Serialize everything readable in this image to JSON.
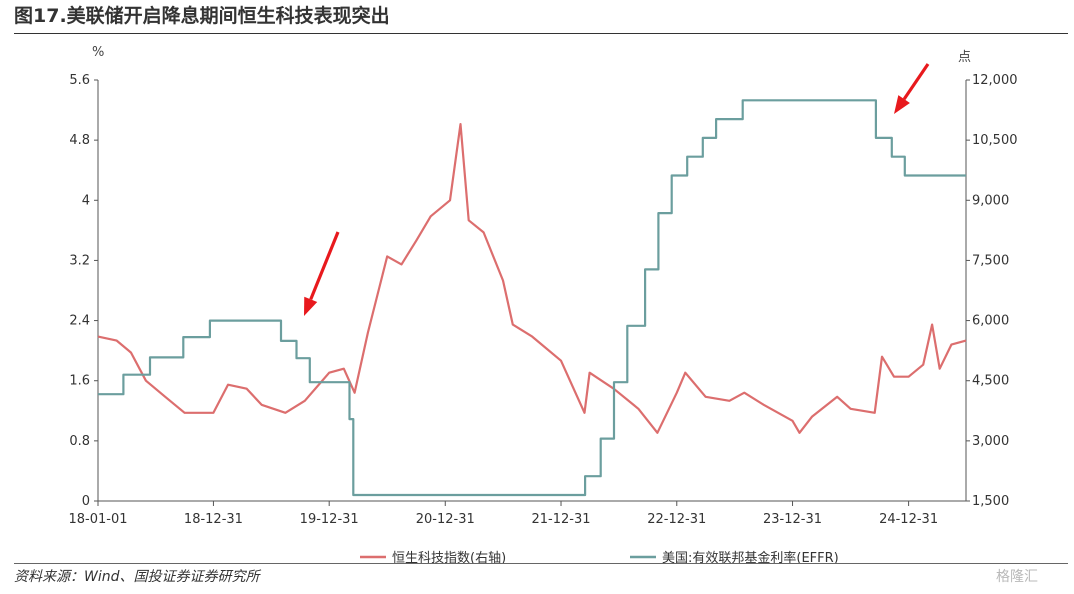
{
  "header": {
    "title": "图17.美联储开启降息期间恒生科技表现突出"
  },
  "footer": {
    "source": "资料来源：Wind、国投证券证券研究所",
    "watermark": "格隆汇"
  },
  "chart_data": {
    "type": "line",
    "left_unit": "%",
    "right_unit": "点",
    "x_ticks": [
      "18-01-01",
      "18-12-31",
      "19-12-31",
      "20-12-31",
      "21-12-31",
      "22-12-31",
      "23-12-31",
      "24-12-31"
    ],
    "left_axis": {
      "ylim": [
        0,
        5.6
      ],
      "ticks": [
        "0",
        "0.8",
        "1.6",
        "2.4",
        "3.2",
        "4",
        "4.8",
        "5.6"
      ]
    },
    "right_axis": {
      "ylim": [
        1500,
        12000
      ],
      "ticks": [
        "1,500",
        "3,000",
        "4,500",
        "6,000",
        "7,500",
        "9,000",
        "10,500",
        "12,000"
      ]
    },
    "grid": false,
    "legend_position": "bottom",
    "series": [
      {
        "name": "恒生科技指数(右轴)",
        "axis": "right",
        "color": "#dc6e6e",
        "x": [
          "2018-01-01",
          "2018-03-01",
          "2018-04-15",
          "2018-06-01",
          "2018-08-01",
          "2018-10-01",
          "2018-12-31",
          "2019-02-15",
          "2019-04-15",
          "2019-06-01",
          "2019-08-15",
          "2019-10-15",
          "2019-12-31",
          "2020-02-15",
          "2020-03-20",
          "2020-05-01",
          "2020-07-01",
          "2020-08-15",
          "2020-10-01",
          "2020-11-15",
          "2021-01-15",
          "2021-02-17",
          "2021-03-15",
          "2021-05-01",
          "2021-07-01",
          "2021-08-01",
          "2021-10-01",
          "2021-12-31",
          "2022-03-15",
          "2022-03-31",
          "2022-06-15",
          "2022-09-01",
          "2022-10-31",
          "2022-12-31",
          "2023-01-27",
          "2023-04-01",
          "2023-06-15",
          "2023-08-01",
          "2023-10-01",
          "2023-12-31",
          "2024-01-22",
          "2024-03-01",
          "2024-05-20",
          "2024-07-01",
          "2024-09-15",
          "2024-10-08",
          "2024-11-15",
          "2024-12-31",
          "2025-02-15",
          "2025-03-15",
          "2025-04-08",
          "2025-05-15",
          "2025-06-30"
        ],
        "values": [
          5600,
          5500,
          5200,
          4500,
          4100,
          3700,
          3700,
          4400,
          4300,
          3900,
          3700,
          4000,
          4700,
          4800,
          4200,
          5700,
          7600,
          7400,
          8000,
          8600,
          9000,
          10900,
          8500,
          8200,
          7000,
          5900,
          5600,
          5000,
          3700,
          4700,
          4300,
          3800,
          3200,
          4200,
          4700,
          4100,
          4000,
          4200,
          3900,
          3500,
          3200,
          3600,
          4100,
          3800,
          3700,
          5100,
          4600,
          4600,
          4900,
          5900,
          4800,
          5400,
          5500
        ]
      },
      {
        "name": "美国:有效联邦基金利率(EFFR)",
        "axis": "left",
        "color": "#6b9e9e",
        "x": [
          "2018-01-01",
          "2018-03-22",
          "2018-06-14",
          "2018-09-27",
          "2018-12-20",
          "2019-08-01",
          "2019-09-19",
          "2019-10-31",
          "2020-03-04",
          "2020-03-16",
          "2020-12-31",
          "2021-12-31",
          "2022-03-17",
          "2022-05-05",
          "2022-06-16",
          "2022-07-28",
          "2022-09-22",
          "2022-11-03",
          "2022-12-15",
          "2023-02-02",
          "2023-03-23",
          "2023-05-04",
          "2023-07-27",
          "2024-09-19",
          "2024-11-08",
          "2024-12-19",
          "2025-06-30"
        ],
        "values": [
          1.42,
          1.68,
          1.91,
          2.18,
          2.4,
          2.13,
          1.9,
          1.58,
          1.09,
          0.08,
          0.08,
          0.08,
          0.33,
          0.83,
          1.58,
          2.33,
          3.08,
          3.83,
          4.33,
          4.58,
          4.83,
          5.08,
          5.33,
          4.83,
          4.58,
          4.33,
          4.33
        ]
      }
    ]
  }
}
